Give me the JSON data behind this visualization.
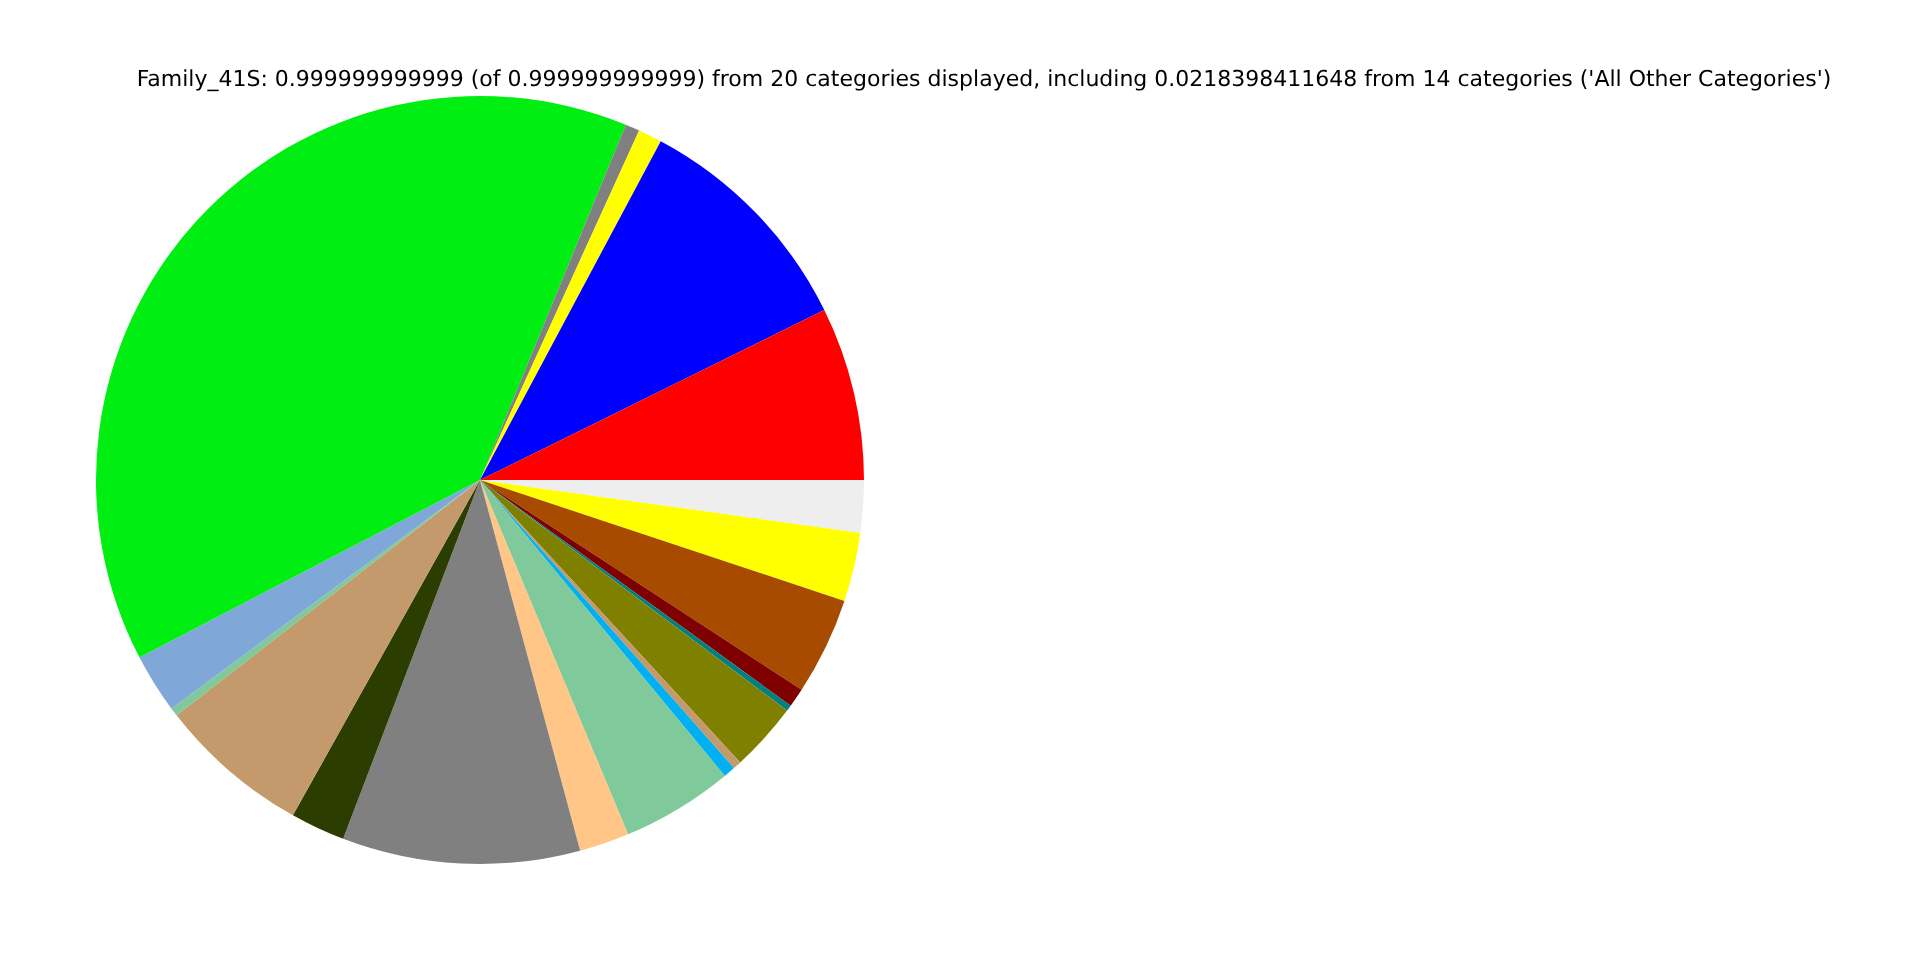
{
  "chart_data": {
    "type": "pie",
    "title": "Family_41S: 0.999999999999 (of 0.999999999999) from 20 categories displayed, including 0.0218398411648 from 14 categories ('All Other Categories')",
    "categories": [
      null,
      null,
      null,
      null,
      null,
      null,
      null,
      null,
      null,
      null,
      null,
      null,
      null,
      null,
      null,
      null,
      null,
      null,
      null,
      null
    ],
    "values": [
      2.2,
      2.9,
      4.1,
      0.8,
      0.25,
      2.9,
      0.35,
      0.5,
      4.7,
      2.1,
      10.0,
      2.3,
      6.4,
      0.35,
      2.5,
      38.85,
      0.6,
      1.0,
      9.9,
      7.3
    ],
    "colors": [
      "#eeeeee",
      "#ffff00",
      "#a64b00",
      "#7f0000",
      "#008080",
      "#808000",
      "#c49a6c",
      "#00b0f0",
      "#80c99a",
      "#ffc688",
      "#808080",
      "#2b3d00",
      "#c49a6c",
      "#80c99a",
      "#7fa8d9",
      "#00ee11",
      "#808080",
      "#ffff00",
      "#0000ff",
      "#ff0000"
    ],
    "legend": false
  }
}
